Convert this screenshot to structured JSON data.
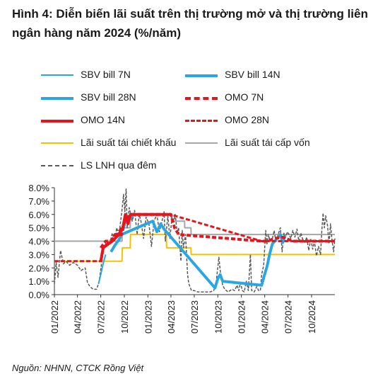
{
  "title": "Hình 4: Diễn biến lãi suất trên thị trường mở và thị trường liên ngân hàng năm 2024 (%/năm)",
  "source": "Nguồn: NHNN, CTCK Rồng Việt",
  "chart_data": {
    "type": "line",
    "title": "Hình 4: Diễn biến lãi suất trên thị trường mở và thị trường liên ngân hàng năm 2024 (%/năm)",
    "xlabel": "",
    "ylabel": "",
    "ylim": [
      0,
      8
    ],
    "xlim": [
      "2022-01-01",
      "2024-12-31"
    ],
    "y_ticks": [
      "0.0%",
      "1.0%",
      "2.0%",
      "3.0%",
      "4.0%",
      "5.0%",
      "6.0%",
      "7.0%",
      "8.0%"
    ],
    "x_ticks": [
      "01/2022",
      "04/2022",
      "07/2022",
      "10/2022",
      "01/2023",
      "04/2023",
      "07/2023",
      "10/2023",
      "01/2024",
      "04/2024",
      "07/2024",
      "10/2024"
    ],
    "grid": false,
    "legend_position": "top",
    "series": [
      {
        "name": "SBV bill 7N",
        "color": "#2aa7e0",
        "style": "solid",
        "width": 2,
        "points": [
          [
            "2022-06-22",
            0.8
          ],
          [
            "2022-07-01",
            1.5
          ],
          [
            "2022-07-10",
            2.3
          ],
          [
            "2022-07-20",
            3.0
          ]
        ]
      },
      {
        "name": "SBV bill 14N",
        "color": "#2aa7e0",
        "style": "solid",
        "width": 4,
        "points": [
          [
            "2022-09-25",
            4.8
          ],
          [
            "2022-10-01",
            5.2
          ],
          [
            "2022-10-10",
            5.9
          ],
          [
            "2022-10-20",
            5.6
          ],
          [
            "2022-11-01",
            5.9
          ],
          [
            "2022-11-10",
            6.0
          ]
        ]
      },
      {
        "name": "SBV bill 28N",
        "color": "#2aa7e0",
        "style": "solid",
        "width": 4,
        "points": [
          [
            "2022-08-10",
            3.2
          ],
          [
            "2022-08-25",
            3.7
          ],
          [
            "2022-09-10",
            4.1
          ],
          [
            "2022-09-20",
            4.5
          ],
          [
            "2023-01-20",
            5.5
          ],
          [
            "2023-02-05",
            4.7
          ],
          [
            "2023-02-20",
            5.3
          ],
          [
            "2023-03-05",
            4.9
          ],
          [
            "2023-09-20",
            0.5
          ],
          [
            "2023-10-01",
            1.2
          ],
          [
            "2023-10-10",
            1.5
          ],
          [
            "2023-10-20",
            1.0
          ],
          [
            "2024-03-20",
            0.7
          ],
          [
            "2024-03-30",
            1.4
          ],
          [
            "2024-04-10",
            2.1
          ],
          [
            "2024-04-20",
            3.0
          ],
          [
            "2024-05-01",
            3.8
          ],
          [
            "2024-05-15",
            4.1
          ],
          [
            "2024-06-01",
            4.5
          ],
          [
            "2024-06-10",
            3.9
          ],
          [
            "2024-06-20",
            4.4
          ]
        ]
      },
      {
        "name": "OMO 7N",
        "color": "#e8141b",
        "style": "dashed",
        "width": 4,
        "points": [
          [
            "2022-07-01",
            3.5
          ],
          [
            "2022-07-20",
            4.0
          ],
          [
            "2022-08-10",
            4.0
          ],
          [
            "2022-08-25",
            4.5
          ],
          [
            "2022-09-20",
            4.5
          ],
          [
            "2022-10-01",
            5.5
          ],
          [
            "2022-10-25",
            6.0
          ],
          [
            "2022-11-20",
            6.0
          ],
          [
            "2023-04-01",
            6.0
          ],
          [
            "2023-04-15",
            5.0
          ],
          [
            "2023-05-01",
            4.5
          ],
          [
            "2024-03-20",
            4.0
          ],
          [
            "2024-04-10",
            4.0
          ],
          [
            "2024-05-10",
            4.2
          ],
          [
            "2024-06-10",
            4.3
          ],
          [
            "2024-07-20",
            4.0
          ],
          [
            "2024-12-31",
            4.0
          ]
        ]
      },
      {
        "name": "OMO 14N",
        "color": "#e8141b",
        "style": "solid",
        "width": 4,
        "points": [
          [
            "2022-07-01",
            2.5
          ],
          [
            "2022-07-10",
            3.5
          ],
          [
            "2022-08-15",
            4.0
          ],
          [
            "2022-09-10",
            4.5
          ],
          [
            "2022-09-25",
            5.0
          ],
          [
            "2022-10-05",
            6.0
          ],
          [
            "2022-10-15",
            5.3
          ],
          [
            "2022-10-25",
            6.0
          ],
          [
            "2023-04-01",
            6.0
          ]
        ]
      },
      {
        "name": "OMO 28N",
        "color": "#e8141b",
        "style": "dashed",
        "width": 3,
        "points": [
          [
            "2022-01-01",
            2.5
          ],
          [
            "2022-06-30",
            2.5
          ],
          [
            "2022-07-10",
            3.5
          ],
          [
            "2022-09-01",
            4.5
          ],
          [
            "2022-10-25",
            6.0
          ],
          [
            "2023-03-30",
            6.0
          ],
          [
            "2024-03-20",
            4.0
          ],
          [
            "2024-12-31",
            4.0
          ]
        ]
      },
      {
        "name": "Lãi suất tái chiết khấu",
        "color": "#f2c300",
        "style": "solid",
        "width": 2,
        "points": [
          [
            "2022-01-01",
            2.5
          ],
          [
            "2022-09-22",
            2.5
          ],
          [
            "2022-09-23",
            3.5
          ],
          [
            "2022-10-24",
            3.5
          ],
          [
            "2022-10-25",
            4.5
          ],
          [
            "2023-03-14",
            4.5
          ],
          [
            "2023-03-15",
            3.5
          ],
          [
            "2023-06-18",
            3.5
          ],
          [
            "2023-06-19",
            3.0
          ],
          [
            "2024-12-31",
            3.0
          ]
        ]
      },
      {
        "name": "Lãi suất tái cấp vốn",
        "color": "#a6a6a6",
        "style": "solid",
        "width": 2,
        "points": [
          [
            "2022-01-01",
            4.0
          ],
          [
            "2022-09-22",
            4.0
          ],
          [
            "2022-09-23",
            5.0
          ],
          [
            "2022-10-24",
            5.0
          ],
          [
            "2022-10-25",
            6.0
          ],
          [
            "2023-04-02",
            6.0
          ],
          [
            "2023-04-03",
            5.5
          ],
          [
            "2023-05-24",
            5.5
          ],
          [
            "2023-05-25",
            5.0
          ],
          [
            "2023-06-18",
            5.0
          ],
          [
            "2023-06-19",
            4.5
          ],
          [
            "2024-12-31",
            4.5
          ]
        ]
      },
      {
        "name": "LS LNH qua đêm",
        "color": "#595959",
        "style": "dashed",
        "width": 1.5,
        "points": [
          [
            "2022-01-01",
            0.8
          ],
          [
            "2022-01-08",
            2.4
          ],
          [
            "2022-01-15",
            1.3
          ],
          [
            "2022-01-25",
            3.3
          ],
          [
            "2022-02-05",
            2.3
          ],
          [
            "2022-02-15",
            2.5
          ],
          [
            "2022-03-01",
            2.2
          ],
          [
            "2022-03-15",
            2.4
          ],
          [
            "2022-04-01",
            2.2
          ],
          [
            "2022-04-15",
            1.8
          ],
          [
            "2022-05-01",
            2.0
          ],
          [
            "2022-05-10",
            0.9
          ],
          [
            "2022-05-20",
            0.6
          ],
          [
            "2022-06-01",
            0.4
          ],
          [
            "2022-06-15",
            0.4
          ],
          [
            "2022-06-25",
            1.0
          ],
          [
            "2022-07-05",
            2.5
          ],
          [
            "2022-07-15",
            3.6
          ],
          [
            "2022-07-25",
            4.0
          ],
          [
            "2022-08-05",
            3.8
          ],
          [
            "2022-08-15",
            4.6
          ],
          [
            "2022-08-25",
            4.0
          ],
          [
            "2022-09-01",
            5.0
          ],
          [
            "2022-09-10",
            4.5
          ],
          [
            "2022-09-20",
            6.0
          ],
          [
            "2022-09-28",
            7.5
          ],
          [
            "2022-10-03",
            6.2
          ],
          [
            "2022-10-08",
            7.9
          ],
          [
            "2022-10-12",
            5.0
          ],
          [
            "2022-10-20",
            6.5
          ],
          [
            "2022-11-01",
            5.5
          ],
          [
            "2022-11-10",
            6.3
          ],
          [
            "2022-11-20",
            4.5
          ],
          [
            "2022-11-28",
            6.0
          ],
          [
            "2022-12-05",
            5.5
          ],
          [
            "2022-12-15",
            4.2
          ],
          [
            "2022-12-25",
            5.8
          ],
          [
            "2023-01-05",
            5.3
          ],
          [
            "2023-01-15",
            3.6
          ],
          [
            "2023-01-25",
            5.5
          ],
          [
            "2023-02-05",
            6.0
          ],
          [
            "2023-02-15",
            4.7
          ],
          [
            "2023-02-25",
            5.5
          ],
          [
            "2023-03-05",
            6.2
          ],
          [
            "2023-03-10",
            4.0
          ],
          [
            "2023-03-20",
            5.9
          ],
          [
            "2023-03-28",
            4.2
          ],
          [
            "2023-04-05",
            5.8
          ],
          [
            "2023-04-12",
            5.5
          ],
          [
            "2023-04-18",
            6.0
          ],
          [
            "2023-04-25",
            4.6
          ],
          [
            "2023-05-01",
            5.0
          ],
          [
            "2023-05-10",
            2.5
          ],
          [
            "2023-05-15",
            4.8
          ],
          [
            "2023-05-20",
            3.5
          ],
          [
            "2023-05-28",
            4.5
          ],
          [
            "2023-06-05",
            1.5
          ],
          [
            "2023-06-10",
            0.8
          ],
          [
            "2023-06-20",
            0.3
          ],
          [
            "2023-07-01",
            0.3
          ],
          [
            "2023-07-15",
            0.2
          ],
          [
            "2023-08-01",
            0.2
          ],
          [
            "2023-08-15",
            0.2
          ],
          [
            "2023-09-01",
            0.2
          ],
          [
            "2023-09-15",
            0.3
          ],
          [
            "2023-09-25",
            1.0
          ],
          [
            "2023-10-05",
            2.8
          ],
          [
            "2023-10-12",
            1.5
          ],
          [
            "2023-10-20",
            0.7
          ],
          [
            "2023-10-28",
            0.4
          ],
          [
            "2023-11-10",
            0.2
          ],
          [
            "2023-11-25",
            0.4
          ],
          [
            "2023-12-05",
            0.3
          ],
          [
            "2023-12-15",
            0.7
          ],
          [
            "2023-12-22",
            0.3
          ],
          [
            "2023-12-28",
            0.9
          ],
          [
            "2024-01-05",
            0.3
          ],
          [
            "2024-01-12",
            0.2
          ],
          [
            "2024-01-20",
            1.0
          ],
          [
            "2024-01-28",
            0.3
          ],
          [
            "2024-02-05",
            3.0
          ],
          [
            "2024-02-10",
            0.3
          ],
          [
            "2024-02-20",
            0.2
          ],
          [
            "2024-03-01",
            0.6
          ],
          [
            "2024-03-08",
            0.3
          ],
          [
            "2024-03-15",
            0.3
          ],
          [
            "2024-03-20",
            1.5
          ],
          [
            "2024-03-28",
            2.2
          ],
          [
            "2024-04-05",
            4.8
          ],
          [
            "2024-04-10",
            3.8
          ],
          [
            "2024-04-15",
            4.5
          ],
          [
            "2024-04-22",
            4.0
          ],
          [
            "2024-05-01",
            4.2
          ],
          [
            "2024-05-08",
            4.8
          ],
          [
            "2024-05-15",
            3.9
          ],
          [
            "2024-05-22",
            4.4
          ],
          [
            "2024-06-01",
            5.0
          ],
          [
            "2024-06-08",
            3.2
          ],
          [
            "2024-06-15",
            4.6
          ],
          [
            "2024-06-22",
            4.3
          ],
          [
            "2024-06-28",
            4.7
          ],
          [
            "2024-07-05",
            4.5
          ],
          [
            "2024-07-12",
            4.2
          ],
          [
            "2024-07-20",
            4.8
          ],
          [
            "2024-07-28",
            4.3
          ],
          [
            "2024-08-05",
            4.9
          ],
          [
            "2024-08-12",
            4.0
          ],
          [
            "2024-08-20",
            4.6
          ],
          [
            "2024-08-28",
            4.1
          ],
          [
            "2024-09-05",
            3.9
          ],
          [
            "2024-09-12",
            4.3
          ],
          [
            "2024-09-20",
            3.3
          ],
          [
            "2024-09-28",
            4.2
          ],
          [
            "2024-10-05",
            3.4
          ],
          [
            "2024-10-12",
            4.0
          ],
          [
            "2024-10-20",
            2.9
          ],
          [
            "2024-10-28",
            3.6
          ],
          [
            "2024-11-05",
            3.0
          ],
          [
            "2024-11-10",
            4.8
          ],
          [
            "2024-11-15",
            6.1
          ],
          [
            "2024-11-20",
            5.0
          ],
          [
            "2024-11-25",
            5.9
          ],
          [
            "2024-12-02",
            5.2
          ],
          [
            "2024-12-08",
            3.8
          ],
          [
            "2024-12-14",
            5.3
          ],
          [
            "2024-12-20",
            4.0
          ],
          [
            "2024-12-26",
            3.2
          ],
          [
            "2024-12-31",
            4.2
          ]
        ]
      }
    ]
  }
}
